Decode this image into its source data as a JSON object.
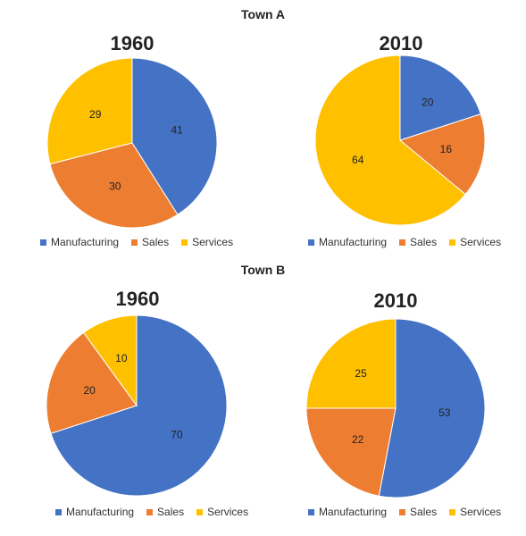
{
  "chart_data": [
    {
      "type": "pie",
      "group": "Town A",
      "title": "1960",
      "categories": [
        "Manufacturing",
        "Sales",
        "Services"
      ],
      "values": [
        41,
        30,
        29
      ],
      "legend": "bottom"
    },
    {
      "type": "pie",
      "group": "Town A",
      "title": "2010",
      "categories": [
        "Manufacturing",
        "Sales",
        "Services"
      ],
      "values": [
        20,
        16,
        64
      ],
      "legend": "bottom"
    },
    {
      "type": "pie",
      "group": "Town B",
      "title": "1960",
      "categories": [
        "Manufacturing",
        "Sales",
        "Services"
      ],
      "values": [
        70,
        20,
        10
      ],
      "legend": "bottom"
    },
    {
      "type": "pie",
      "group": "Town B",
      "title": "2010",
      "categories": [
        "Manufacturing",
        "Sales",
        "Services"
      ],
      "values": [
        53,
        22,
        25
      ],
      "legend": "bottom"
    }
  ],
  "groups": [
    "Town A",
    "Town B"
  ],
  "colors": {
    "Manufacturing": "#4472c4",
    "Sales": "#ed7d31",
    "Services": "#ffc000"
  }
}
